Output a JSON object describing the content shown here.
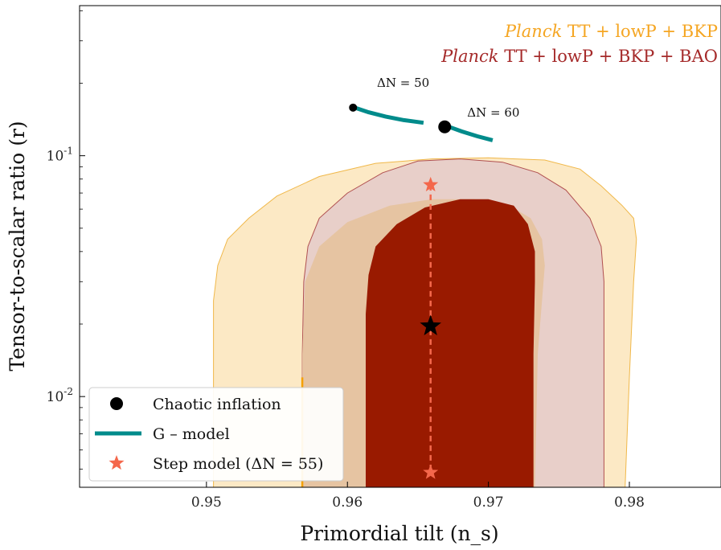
{
  "chart_data": {
    "type": "scatter",
    "xlabel": "Primordial tilt (n_s)",
    "ylabel": "Tensor-to-scalar ratio (r)",
    "xlim": [
      0.941,
      0.9865
    ],
    "ylim": [
      0.0042,
      0.42
    ],
    "yscale": "log",
    "x_ticks": [
      0.95,
      0.96,
      0.97,
      0.98
    ],
    "x_tick_labels": [
      "0.95",
      "0.96",
      "0.97",
      "0.98"
    ],
    "y_ticks": [
      0.01,
      0.1
    ],
    "y_tick_labels": [
      "10^{-2}",
      "10^{-1}"
    ],
    "grid": false,
    "data_legend": [
      {
        "italic": "Planck",
        "rest": " TT + lowP + BKP",
        "color": "#f5a623"
      },
      {
        "italic": "Planck",
        "rest": " TT + lowP + BKP + BAO",
        "color": "#a52a2a"
      }
    ],
    "contours": [
      {
        "name": "Planck TT + lowP + BKP",
        "level": "95%",
        "color": "#fce9c5",
        "edge": "#f0b84a",
        "points": [
          [
            0.9505,
            0.0042
          ],
          [
            0.9505,
            0.012
          ],
          [
            0.9505,
            0.025
          ],
          [
            0.9508,
            0.035
          ],
          [
            0.9515,
            0.045
          ],
          [
            0.953,
            0.055
          ],
          [
            0.955,
            0.068
          ],
          [
            0.958,
            0.082
          ],
          [
            0.962,
            0.093
          ],
          [
            0.966,
            0.097
          ],
          [
            0.97,
            0.098
          ],
          [
            0.974,
            0.096
          ],
          [
            0.9765,
            0.088
          ],
          [
            0.978,
            0.075
          ],
          [
            0.9795,
            0.062
          ],
          [
            0.9803,
            0.055
          ],
          [
            0.9805,
            0.045
          ],
          [
            0.9803,
            0.03
          ],
          [
            0.98,
            0.012
          ],
          [
            0.9797,
            0.0042
          ]
        ]
      },
      {
        "name": "Planck TT + lowP + BKP + BAO",
        "level": "95%",
        "color": "#e8cfc9",
        "edge": "#b05050",
        "points": [
          [
            0.9568,
            0.0042
          ],
          [
            0.9568,
            0.015
          ],
          [
            0.9569,
            0.03
          ],
          [
            0.9572,
            0.042
          ],
          [
            0.958,
            0.055
          ],
          [
            0.96,
            0.07
          ],
          [
            0.9625,
            0.085
          ],
          [
            0.965,
            0.095
          ],
          [
            0.968,
            0.097
          ],
          [
            0.971,
            0.094
          ],
          [
            0.9735,
            0.085
          ],
          [
            0.9755,
            0.072
          ],
          [
            0.9772,
            0.055
          ],
          [
            0.978,
            0.042
          ],
          [
            0.9782,
            0.03
          ],
          [
            0.9782,
            0.015
          ],
          [
            0.9782,
            0.0042
          ]
        ]
      },
      {
        "name": "Planck TT + lowP + BKP",
        "level": "68%",
        "color": "#e6c4a2",
        "edge": "none",
        "points": [
          [
            0.9568,
            0.0042
          ],
          [
            0.9568,
            0.015
          ],
          [
            0.957,
            0.03
          ],
          [
            0.958,
            0.042
          ],
          [
            0.96,
            0.053
          ],
          [
            0.963,
            0.062
          ],
          [
            0.966,
            0.066
          ],
          [
            0.969,
            0.066
          ],
          [
            0.9715,
            0.062
          ],
          [
            0.973,
            0.055
          ],
          [
            0.9738,
            0.045
          ],
          [
            0.974,
            0.035
          ],
          [
            0.9738,
            0.025
          ],
          [
            0.9735,
            0.015
          ],
          [
            0.9733,
            0.0042
          ]
        ]
      },
      {
        "name": "Planck TT + lowP + BKP + BAO",
        "level": "68%",
        "color": "#991a00",
        "edge": "none",
        "points": [
          [
            0.9613,
            0.0042
          ],
          [
            0.9613,
            0.012
          ],
          [
            0.9613,
            0.022
          ],
          [
            0.9615,
            0.032
          ],
          [
            0.962,
            0.042
          ],
          [
            0.9635,
            0.052
          ],
          [
            0.9655,
            0.061
          ],
          [
            0.968,
            0.066
          ],
          [
            0.97,
            0.066
          ],
          [
            0.9718,
            0.062
          ],
          [
            0.9728,
            0.052
          ],
          [
            0.9733,
            0.04
          ],
          [
            0.9733,
            0.03
          ],
          [
            0.9732,
            0.015
          ],
          [
            0.9732,
            0.0042
          ]
        ]
      }
    ],
    "series": [
      {
        "name": "Chaotic inflation",
        "type": "scatter",
        "color": "#000000",
        "points": [
          [
            0.9604,
            0.1584
          ],
          [
            0.9669,
            0.1318
          ]
        ]
      },
      {
        "name": "G – model",
        "type": "line",
        "color": "#008b8b",
        "segments": [
          [
            [
              0.9605,
              0.1584
            ],
            [
              0.9615,
              0.1515
            ],
            [
              0.9627,
              0.1455
            ],
            [
              0.964,
              0.1405
            ],
            [
              0.9654,
              0.137
            ]
          ],
          [
            [
              0.9672,
              0.1318
            ],
            [
              0.9681,
              0.1262
            ],
            [
              0.9692,
              0.1205
            ],
            [
              0.9703,
              0.116
            ]
          ]
        ]
      },
      {
        "name": "Step model (ΔN = 55)",
        "type": "scatter",
        "color": "#f4674b",
        "points": [
          [
            0.9659,
            0.0757
          ],
          [
            0.9659,
            0.00484
          ]
        ],
        "connector": "dashed"
      }
    ],
    "best_fit": {
      "x": 0.9659,
      "y": 0.0196,
      "color": "#000000"
    },
    "annotations": [
      {
        "text": "ΔN = 50",
        "x": 0.9621,
        "y": 0.1935
      },
      {
        "text": "ΔN = 60",
        "x": 0.9685,
        "y": 0.1455
      }
    ],
    "legend": {
      "position": "lower-left",
      "entries": [
        {
          "label": "Chaotic inflation",
          "marker": "circle",
          "color": "#000000"
        },
        {
          "label": "G – model",
          "marker": "line",
          "color": "#008b8b"
        },
        {
          "label": "Step model (ΔN = 55)",
          "marker": "star",
          "color": "#f4674b"
        }
      ]
    }
  }
}
